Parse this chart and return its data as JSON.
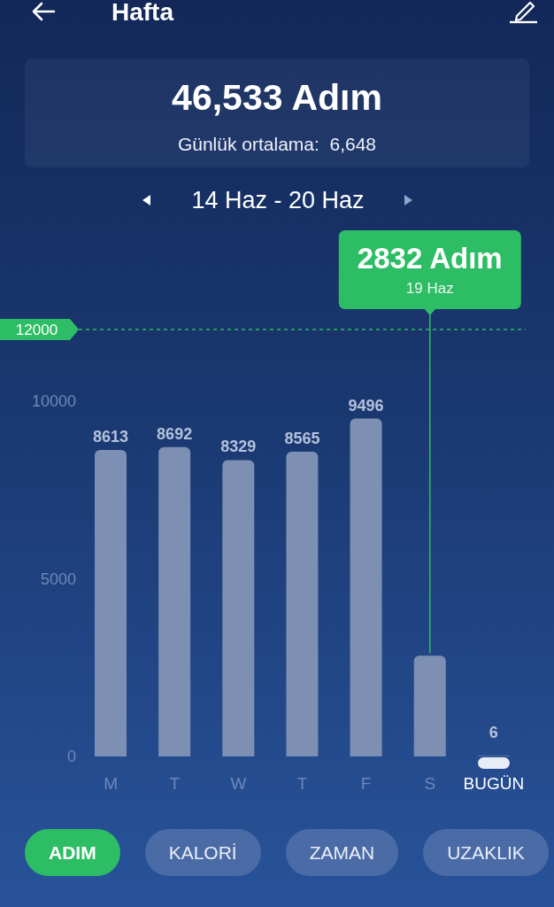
{
  "chart_data": {
    "type": "bar",
    "title": "Hafta",
    "subtitle": "14 Haz - 20 Haz",
    "categories": [
      "M",
      "T",
      "W",
      "T",
      "F",
      "S",
      "BUGÜN"
    ],
    "values": [
      8613,
      8692,
      8329,
      8565,
      9496,
      2832,
      6
    ],
    "colors": [
      "#7d90b3",
      "#7d90b3",
      "#7d90b3",
      "#7d90b3",
      "#7d90b3",
      "#7d90b3",
      "#e8edf5"
    ],
    "value_labels": [
      "8613",
      "8692",
      "8329",
      "8565",
      "9496",
      null,
      "6"
    ],
    "ylim": [
      0,
      12000
    ],
    "yticks": [
      0,
      5000,
      10000
    ],
    "ref_lines": [
      {
        "axis": "y",
        "value": 12000,
        "label": "12000",
        "color": "#2dbd64",
        "line_style": "dashed"
      }
    ],
    "annotations": [
      "46,533 Adım",
      "Günlük ortalama:  6,648",
      "2832 Adım",
      {
        "text": "19 Haz",
        "x": "S",
        "y": 2832
      },
      "ADIM",
      "KALORİ",
      "ZAMAN",
      "UZAKLIK"
    ]
  }
}
